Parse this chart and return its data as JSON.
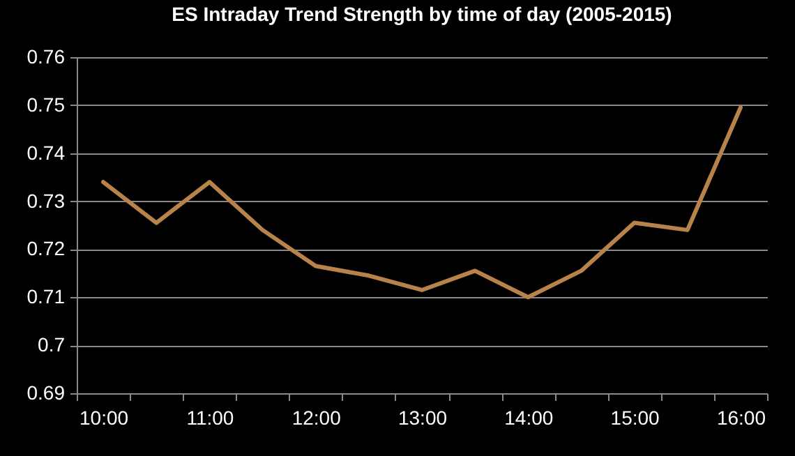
{
  "chart_data": {
    "type": "line",
    "title": "ES Intraday Trend Strength by time of day (2005-2015)",
    "categories": [
      "10:00",
      null,
      "11:00",
      null,
      "12:00",
      null,
      "13:00",
      null,
      "14:00",
      null,
      "15:00",
      null,
      "16:00"
    ],
    "series": [
      {
        "color": "#b8834a",
        "values": [
          0.734,
          0.7255,
          0.734,
          0.724,
          0.7165,
          0.7145,
          0.7115,
          0.7155,
          0.71,
          0.7155,
          0.7255,
          0.724,
          0.7495
        ]
      }
    ],
    "ylim": [
      0.69,
      0.76
    ],
    "yticks": [
      0.69,
      0.7,
      0.71,
      0.72,
      0.73,
      0.74,
      0.75,
      0.76
    ],
    "grid": "y",
    "marker": "none",
    "line_style": "solid"
  }
}
